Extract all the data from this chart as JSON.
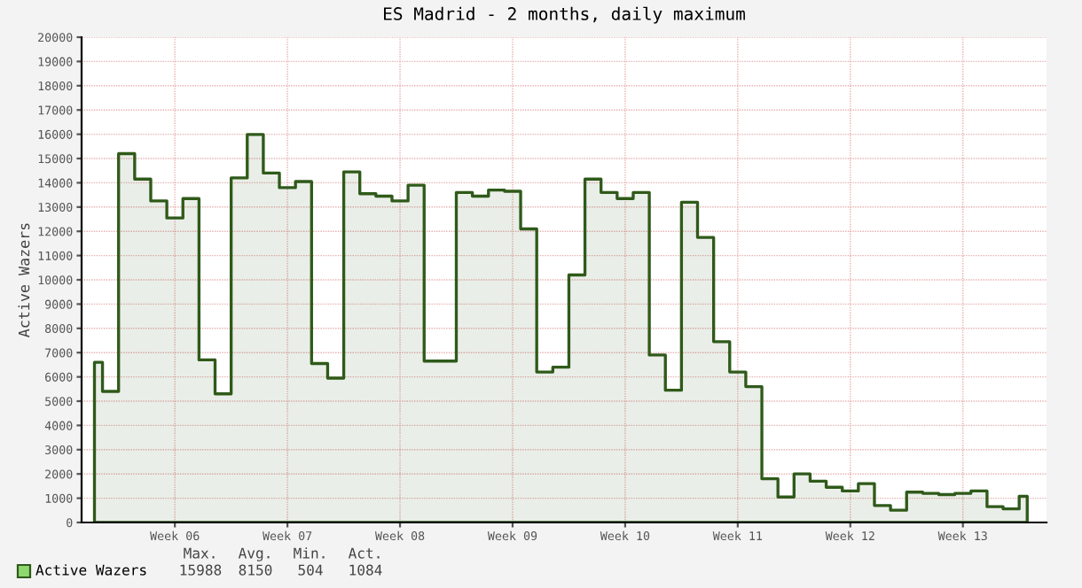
{
  "chart_data": {
    "type": "area",
    "title": "ES Madrid - 2 months, daily maximum",
    "ylabel": "Active Wazers",
    "categories": [
      null,
      null,
      null,
      null,
      null,
      "Week 06",
      null,
      null,
      null,
      null,
      null,
      null,
      "Week 07",
      null,
      null,
      null,
      null,
      null,
      null,
      "Week 08",
      null,
      null,
      null,
      null,
      null,
      null,
      "Week 09",
      null,
      null,
      null,
      null,
      null,
      null,
      "Week 10",
      null,
      null,
      null,
      null,
      null,
      null,
      "Week 11",
      null,
      null,
      null,
      null,
      null,
      null,
      "Week 12",
      null,
      null,
      null,
      null,
      null,
      null,
      "Week 13",
      null,
      null,
      null,
      null
    ],
    "series": [
      {
        "name": "Active Wazers",
        "color": "#2f5a1a",
        "values": [
          6600,
          5400,
          15200,
          14150,
          13250,
          12550,
          13350,
          6700,
          5300,
          14200,
          15988,
          14400,
          13800,
          14050,
          6550,
          5950,
          14450,
          13550,
          13450,
          13250,
          13900,
          6650,
          6650,
          13600,
          13450,
          13700,
          13650,
          12100,
          6200,
          6400,
          10200,
          14150,
          13600,
          13350,
          13600,
          6900,
          5450,
          13200,
          11750,
          7450,
          6200,
          5600,
          1800,
          1050,
          2000,
          1700,
          1450,
          1300,
          1600,
          700,
          504,
          1250,
          1200,
          1150,
          1200,
          1300,
          650,
          560,
          1084
        ]
      }
    ],
    "ylim": [
      0,
      20000
    ],
    "yticks": [
      0,
      1000,
      2000,
      3000,
      4000,
      5000,
      6000,
      7000,
      8000,
      9000,
      10000,
      11000,
      12000,
      13000,
      14000,
      15000,
      16000,
      17000,
      18000,
      19000,
      20000
    ],
    "grid": true,
    "legend": "bottom",
    "annotations": [
      "Max.",
      "Avg.",
      "Min.",
      "Act.",
      "15988",
      "8150",
      "504",
      "1084"
    ]
  }
}
